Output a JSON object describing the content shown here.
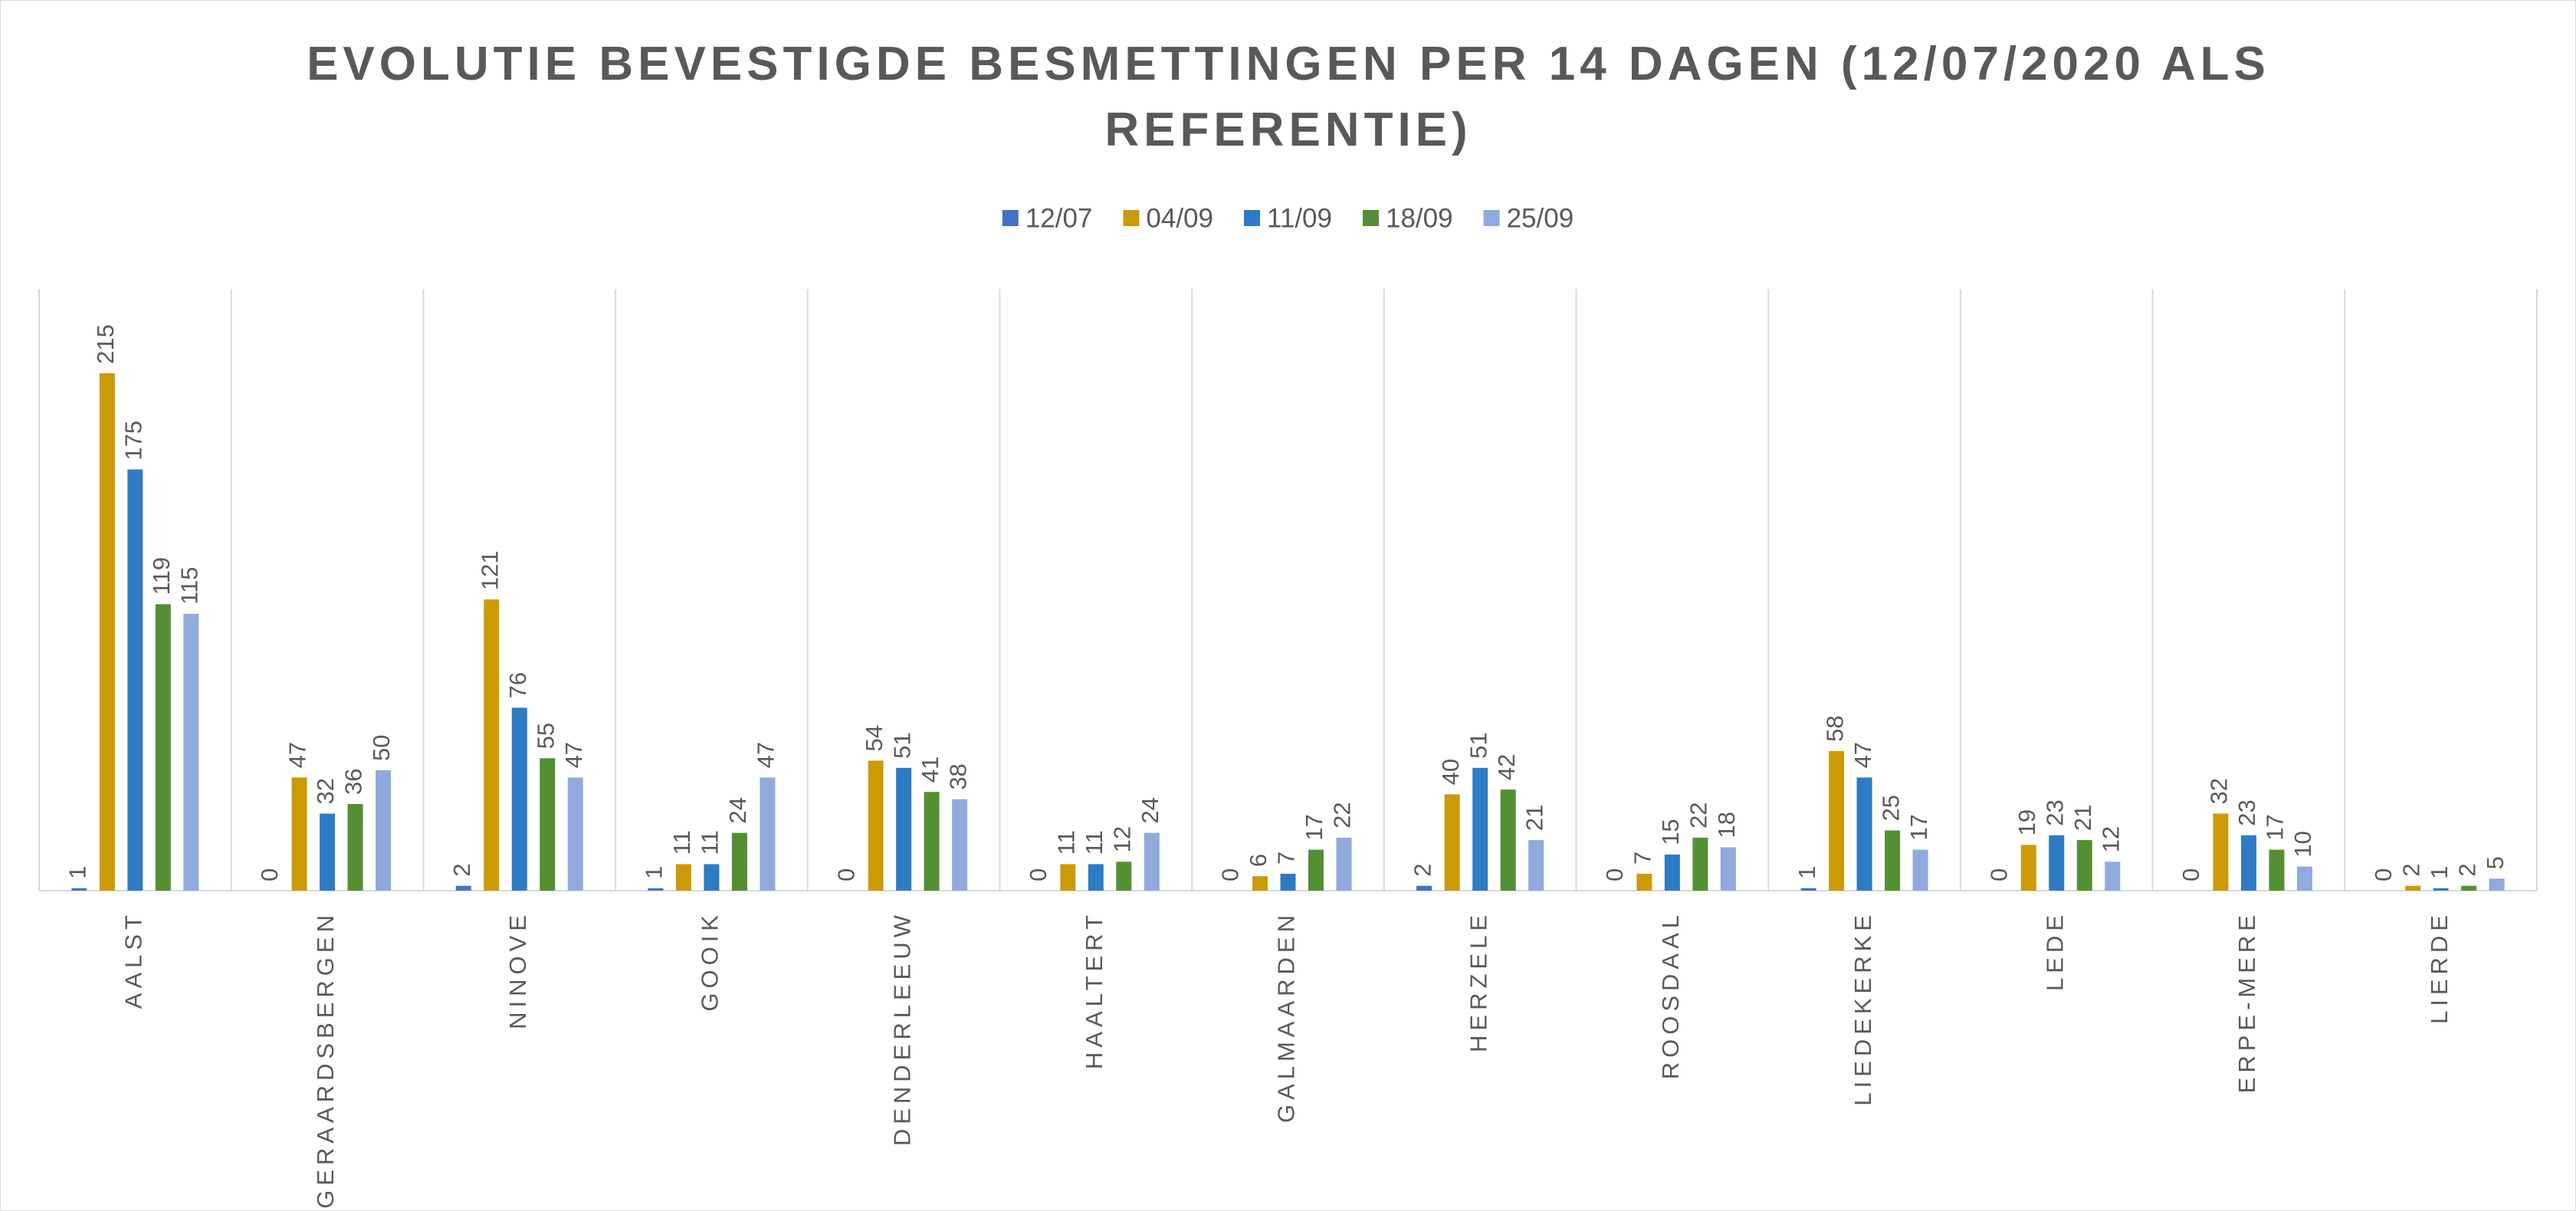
{
  "chart_data": {
    "type": "bar",
    "title": "EVOLUTIE BEVESTIGDE BESMETTINGEN PER 14 DAGEN (12/07/2020 ALS REFERENTIE)",
    "categories": [
      "AALST",
      "GERAARDSBERGEN",
      "NINOVE",
      "GOOIK",
      "DENDERLEEUW",
      "HAALTERT",
      "GALMAARDEN",
      "HERZELE",
      "ROOSDAAL",
      "LIEDEKERKE",
      "LEDE",
      "ERPE-MERE",
      "LIERDE"
    ],
    "series": [
      {
        "name": "12/07",
        "color": "#4472c4",
        "values": [
          1,
          0,
          2,
          1,
          0,
          0,
          0,
          2,
          0,
          1,
          0,
          0,
          0
        ]
      },
      {
        "name": "04/09",
        "color": "#cc9a06",
        "values": [
          215,
          47,
          121,
          11,
          54,
          11,
          6,
          40,
          7,
          58,
          19,
          32,
          2
        ]
      },
      {
        "name": "11/09",
        "color": "#2e7bc4",
        "values": [
          175,
          32,
          76,
          11,
          51,
          11,
          7,
          51,
          15,
          47,
          23,
          23,
          1
        ]
      },
      {
        "name": "18/09",
        "color": "#548f33",
        "values": [
          119,
          36,
          55,
          24,
          41,
          12,
          17,
          42,
          22,
          25,
          21,
          17,
          2
        ]
      },
      {
        "name": "25/09",
        "color": "#8faadc",
        "values": [
          115,
          50,
          47,
          47,
          38,
          24,
          22,
          21,
          18,
          17,
          12,
          10,
          5
        ]
      }
    ],
    "ylim": [
      0,
      250
    ],
    "legend": "top"
  }
}
